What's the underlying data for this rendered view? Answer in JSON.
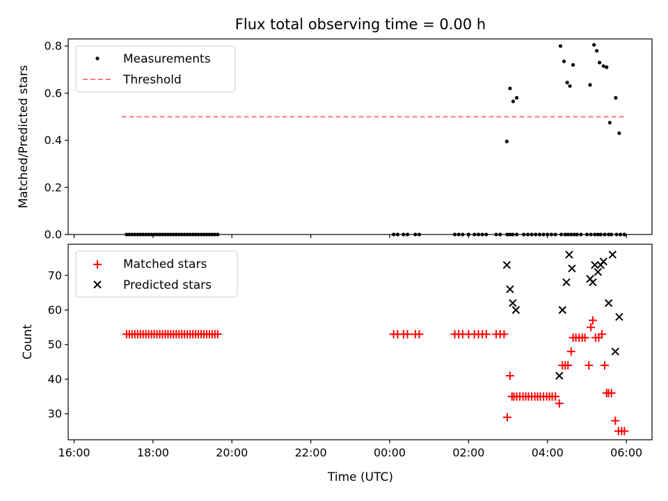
{
  "title": "Flux total observing time = 0.00 h",
  "colors": {
    "measurement": "#000000",
    "threshold": "#ff7777",
    "matched": "#ff0000",
    "predicted": "#000000"
  },
  "xaxis": {
    "label": "Time (UTC)",
    "tick_values": [
      -8,
      -6,
      -4,
      -2,
      0,
      2,
      4,
      6
    ],
    "tick_labels": [
      "16:00",
      "18:00",
      "20:00",
      "22:00",
      "00:00",
      "02:00",
      "04:00",
      "06:00"
    ],
    "range": [
      -8.15,
      6.65
    ]
  },
  "chart_data": [
    {
      "type": "scatter",
      "ylabel": "Matched/Predicted stars",
      "ylim": [
        0,
        0.83
      ],
      "yticks": [
        0.0,
        0.2,
        0.4,
        0.6,
        0.8
      ],
      "ytick_labels": [
        "0.0",
        "0.2",
        "0.4",
        "0.6",
        "0.8"
      ],
      "legend": {
        "placement": "top-left",
        "entries": [
          "Measurements",
          "Threshold"
        ]
      },
      "threshold": {
        "name": "Threshold",
        "value": 0.5,
        "x_range": [
          -6.8,
          5.95
        ]
      },
      "series": [
        {
          "name": "Measurements",
          "x": [
            -6.67,
            -6.6,
            -6.53,
            -6.46,
            -6.39,
            -6.32,
            -6.25,
            -6.18,
            -6.11,
            -6.04,
            -5.97,
            -5.9,
            -5.83,
            -5.76,
            -5.69,
            -5.62,
            -5.55,
            -5.48,
            -5.41,
            -5.34,
            -5.27,
            -5.2,
            -5.13,
            -5.06,
            -4.99,
            -4.92,
            -4.85,
            -4.78,
            -4.71,
            -4.64,
            -4.57,
            -4.5,
            -4.43,
            -4.36,
            0.1,
            0.2,
            0.35,
            0.45,
            0.65,
            0.75,
            1.65,
            1.75,
            1.85,
            2.0,
            2.15,
            2.25,
            2.35,
            2.45,
            2.7,
            2.8,
            2.98,
            3.05,
            3.12,
            3.22,
            3.4,
            3.5,
            3.6,
            3.7,
            3.8,
            3.9,
            4.0,
            4.1,
            4.2,
            4.35,
            4.45,
            4.52,
            4.6,
            4.68,
            4.75,
            4.85,
            5.0,
            5.1,
            5.2,
            5.28,
            5.35,
            5.45,
            5.55,
            5.62,
            5.75,
            5.85,
            5.95,
            2.97,
            3.05,
            3.13,
            3.22,
            4.33,
            4.42,
            4.5,
            4.57,
            4.65,
            5.08,
            5.18,
            5.25,
            5.32,
            5.42,
            5.5,
            5.58,
            5.73,
            5.82
          ],
          "y": [
            0,
            0,
            0,
            0,
            0,
            0,
            0,
            0,
            0,
            0,
            0,
            0,
            0,
            0,
            0,
            0,
            0,
            0,
            0,
            0,
            0,
            0,
            0,
            0,
            0,
            0,
            0,
            0,
            0,
            0,
            0,
            0,
            0,
            0,
            0,
            0,
            0,
            0,
            0,
            0,
            0,
            0,
            0,
            0,
            0,
            0,
            0,
            0,
            0,
            0,
            0,
            0,
            0,
            0,
            0,
            0,
            0,
            0,
            0,
            0,
            0,
            0,
            0,
            0,
            0,
            0,
            0,
            0,
            0,
            0,
            0,
            0,
            0,
            0,
            0,
            0,
            0,
            0,
            0,
            0,
            0,
            0.395,
            0.62,
            0.565,
            0.58,
            0.8,
            0.735,
            0.645,
            0.63,
            0.72,
            0.635,
            0.805,
            0.78,
            0.73,
            0.715,
            0.71,
            0.475,
            0.58,
            0.43
          ]
        }
      ]
    },
    {
      "type": "scatter",
      "ylabel": "Count",
      "ylim": [
        22.5,
        79
      ],
      "yticks": [
        30,
        40,
        50,
        60,
        70
      ],
      "ytick_labels": [
        "30",
        "40",
        "50",
        "60",
        "70"
      ],
      "legend": {
        "placement": "top-left",
        "entries": [
          "Matched stars",
          "Predicted stars"
        ]
      },
      "series": [
        {
          "name": "Matched stars",
          "marker": "plus",
          "x": [
            -6.67,
            -6.6,
            -6.53,
            -6.46,
            -6.39,
            -6.32,
            -6.25,
            -6.18,
            -6.11,
            -6.04,
            -5.97,
            -5.9,
            -5.83,
            -5.76,
            -5.69,
            -5.62,
            -5.55,
            -5.48,
            -5.41,
            -5.34,
            -5.27,
            -5.2,
            -5.13,
            -5.06,
            -4.99,
            -4.92,
            -4.85,
            -4.78,
            -4.71,
            -4.64,
            -4.57,
            -4.5,
            -4.43,
            -4.36,
            0.1,
            0.2,
            0.35,
            0.45,
            0.65,
            0.75,
            1.65,
            1.75,
            1.85,
            2.0,
            2.15,
            2.25,
            2.35,
            2.45,
            2.7,
            2.8,
            2.9,
            2.98,
            3.05,
            3.1,
            3.15,
            3.22,
            3.3,
            3.38,
            3.45,
            3.52,
            3.6,
            3.68,
            3.75,
            3.82,
            3.9,
            3.98,
            4.05,
            4.12,
            4.2,
            4.3,
            4.38,
            4.45,
            4.52,
            4.6,
            4.65,
            4.72,
            4.8,
            4.88,
            4.95,
            5.05,
            5.1,
            5.15,
            5.22,
            5.3,
            5.38,
            5.45,
            5.5,
            5.55,
            5.62,
            5.72,
            5.8,
            5.88,
            5.95
          ],
          "y": [
            53,
            53,
            53,
            53,
            53,
            53,
            53,
            53,
            53,
            53,
            53,
            53,
            53,
            53,
            53,
            53,
            53,
            53,
            53,
            53,
            53,
            53,
            53,
            53,
            53,
            53,
            53,
            53,
            53,
            53,
            53,
            53,
            53,
            53,
            53,
            53,
            53,
            53,
            53,
            53,
            53,
            53,
            53,
            53,
            53,
            53,
            53,
            53,
            53,
            53,
            53,
            29,
            41,
            35,
            35,
            35,
            35,
            35,
            35,
            35,
            35,
            35,
            35,
            35,
            35,
            35,
            35,
            35,
            35,
            33,
            44,
            44,
            44,
            48,
            52,
            52,
            52,
            52,
            52,
            44,
            55,
            57,
            52,
            52,
            53,
            44,
            36,
            36,
            36,
            28,
            25,
            25,
            25
          ]
        },
        {
          "name": "Predicted stars",
          "marker": "x",
          "x": [
            2.97,
            3.05,
            3.12,
            3.2,
            4.3,
            4.38,
            4.48,
            4.55,
            4.62,
            5.08,
            5.15,
            5.2,
            5.28,
            5.35,
            5.42,
            5.55,
            5.65,
            5.72,
            5.82
          ],
          "y": [
            73,
            66,
            62,
            60,
            41,
            60,
            68,
            76,
            72,
            69,
            68,
            73,
            71,
            73,
            74,
            62,
            76,
            48,
            58
          ]
        }
      ]
    }
  ]
}
